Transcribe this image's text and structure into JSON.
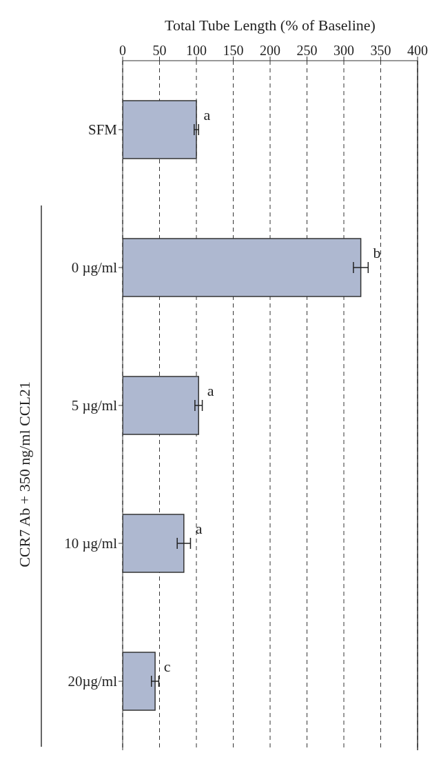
{
  "chart_data": {
    "type": "bar",
    "orientation": "horizontal",
    "xlabel": "Total Tube Length (% of Baseline)",
    "categories": [
      "SFM",
      "0 µg/ml",
      "5 µg/ml",
      "10 µg/ml",
      "20µg/ml"
    ],
    "values": [
      100,
      323,
      103,
      83,
      44
    ],
    "errors": [
      3,
      10,
      5,
      9,
      5
    ],
    "color": "#aeb8d0",
    "xlim": [
      0,
      400
    ],
    "xticks": [
      0,
      50,
      100,
      150,
      200,
      250,
      300,
      350,
      400
    ],
    "grid": "x",
    "annotations": [
      {
        "text": "a",
        "x": 106,
        "y": "SFM"
      },
      {
        "text": "b",
        "x": 336,
        "y": "0 µg/ml"
      },
      {
        "text": "a",
        "x": 111,
        "y": "5 µg/ml"
      },
      {
        "text": "a",
        "x": 95,
        "y": "10 µg/ml"
      },
      {
        "text": "c",
        "x": 52,
        "y": "20µg/ml"
      },
      "CCR7 Ab + 350 ng/ml CCL21"
    ]
  }
}
